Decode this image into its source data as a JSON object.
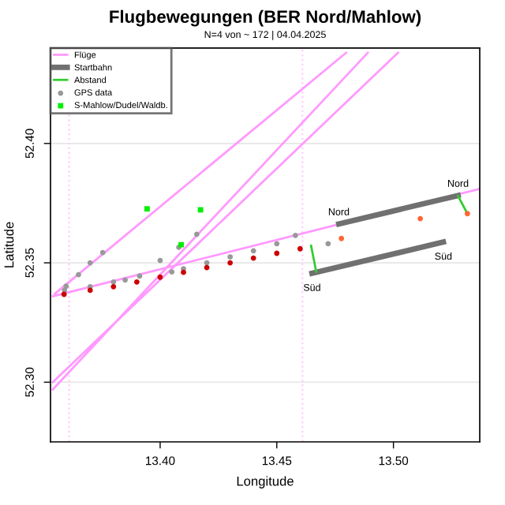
{
  "chart_data": {
    "type": "scatter",
    "title": "Flugbewegungen (BER Nord/Mahlow)",
    "subtitle": "N=4 von ~ 172 | 04.04.2025",
    "xlabel": "Longitude",
    "ylabel": "Latitude",
    "xlim": [
      13.353,
      13.537
    ],
    "ylim": [
      52.275,
      52.44
    ],
    "xticks": [
      {
        "value": 13.4,
        "label": "13.40"
      },
      {
        "value": 13.45,
        "label": "13.45"
      },
      {
        "value": 13.5,
        "label": "13.50"
      }
    ],
    "yticks": [
      {
        "value": 52.3,
        "label": "52.30"
      },
      {
        "value": 52.35,
        "label": "52.35"
      },
      {
        "value": 52.4,
        "label": "52.40"
      }
    ],
    "grid": "y",
    "legend": "top left",
    "ref_lines": [
      {
        "axis": "x",
        "value": 13.361,
        "color": "#ffccff",
        "line_style": "dotted"
      },
      {
        "axis": "x",
        "value": 13.461,
        "color": "#ffccff",
        "line_style": "dotted"
      }
    ],
    "series": [
      {
        "name": "Flüge",
        "type": "line",
        "color": "#ff99ff",
        "marker": "none",
        "x": [
          13.354,
          13.537,
          null,
          13.354,
          13.489,
          null,
          13.354,
          13.502,
          null,
          13.3548,
          13.4797
        ],
        "values": [
          52.336,
          52.381,
          null,
          52.297,
          52.438,
          null,
          52.3,
          52.438,
          null,
          52.337,
          52.438
        ]
      },
      {
        "name": "Startbahn",
        "type": "line",
        "color": "#707070",
        "marker": "none",
        "x": [
          13.4766,
          13.5277,
          null,
          13.4651,
          13.5214
        ],
        "values": [
          52.3663,
          52.3782,
          null,
          52.3456,
          52.3587
        ]
      },
      {
        "name": "Abstand",
        "type": "line",
        "color": "#33cc33",
        "marker": "none",
        "x": [
          13.4647,
          13.4669,
          null,
          13.5277,
          13.5317
        ],
        "values": [
          52.3572,
          52.3463,
          null,
          52.378,
          52.3706
        ]
      },
      {
        "name": "GPS data",
        "type": "scatter",
        "color": "#999999",
        "marker": "circle",
        "x": [
          13.359,
          13.37,
          13.38,
          13.385,
          13.405,
          13.41,
          13.42,
          13.43,
          13.44,
          13.45,
          13.458,
          13.472,
          13.3597,
          13.365,
          13.37,
          13.3754,
          13.3912,
          13.4,
          13.408,
          13.4157
        ],
        "values": [
          52.3385,
          52.34,
          52.342,
          52.3428,
          52.3462,
          52.3475,
          52.35,
          52.3525,
          52.355,
          52.358,
          52.3615,
          52.358,
          52.3402,
          52.345,
          52.35,
          52.3543,
          52.3445,
          52.351,
          52.3565,
          52.362
        ]
      },
      {
        "type": "scatter",
        "color": "#cc0000",
        "marker": "circle",
        "x": [
          13.3588,
          13.37,
          13.38,
          13.39,
          13.4,
          13.41,
          13.42,
          13.43,
          13.44,
          13.45,
          13.46
        ],
        "values": [
          52.3368,
          52.3385,
          52.34,
          52.342,
          52.344,
          52.346,
          52.348,
          52.35,
          52.352,
          52.354,
          52.3559
        ]
      },
      {
        "type": "scatter",
        "color": "#ff6633",
        "marker": "circle",
        "x": [
          13.5115,
          13.4777,
          13.5317
        ],
        "values": [
          52.3685,
          52.3602,
          52.3706
        ]
      },
      {
        "name": "S-Mahlow/Dudel/Waldb.",
        "type": "scatter",
        "color": "#00ee00",
        "marker": "square",
        "x": [
          13.3944,
          13.4173,
          13.409
        ],
        "values": [
          52.3726,
          52.3722,
          52.3576
        ]
      }
    ],
    "annotations": [
      {
        "text": "Nord",
        "x": 13.4766,
        "y": 52.3663
      },
      {
        "text": "Nord",
        "x": 13.5277,
        "y": 52.3782
      },
      {
        "text": "Süd",
        "x": 13.4651,
        "y": 52.3456
      },
      {
        "text": "Süd",
        "x": 13.5214,
        "y": 52.3587
      }
    ]
  }
}
